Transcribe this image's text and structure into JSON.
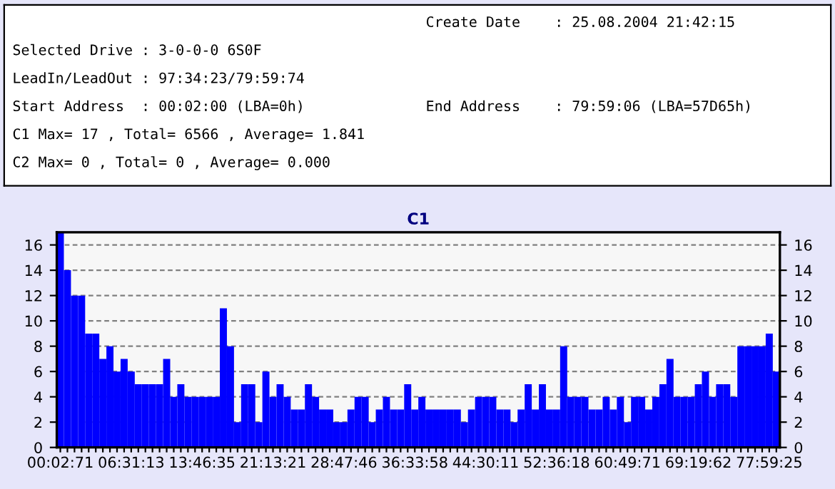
{
  "chart_data": {
    "type": "bar",
    "title": "C1",
    "categories": [
      "00:02:71",
      null,
      null,
      null,
      null,
      null,
      null,
      null,
      null,
      null,
      "06:31:13",
      null,
      null,
      null,
      null,
      null,
      null,
      null,
      null,
      null,
      "13:46:35",
      null,
      null,
      null,
      null,
      null,
      null,
      null,
      null,
      null,
      "21:13:21",
      null,
      null,
      null,
      null,
      null,
      null,
      null,
      null,
      null,
      "28:47:46",
      null,
      null,
      null,
      null,
      null,
      null,
      null,
      null,
      null,
      "36:33:58",
      null,
      null,
      null,
      null,
      null,
      null,
      null,
      null,
      null,
      "44:30:11",
      null,
      null,
      null,
      null,
      null,
      null,
      null,
      null,
      null,
      "52:36:18",
      null,
      null,
      null,
      null,
      null,
      null,
      null,
      null,
      null,
      "60:49:71",
      null,
      null,
      null,
      null,
      null,
      null,
      null,
      null,
      null,
      "69:19:62",
      null,
      null,
      null,
      null,
      null,
      null,
      null,
      null,
      null,
      "77:59:25",
      null
    ],
    "values": [
      17,
      14,
      12,
      12,
      9,
      9,
      7,
      8,
      6,
      7,
      6,
      5,
      5,
      5,
      5,
      7,
      4,
      5,
      4,
      4,
      4,
      4,
      4,
      11,
      8,
      2,
      5,
      5,
      2,
      6,
      4,
      5,
      4,
      3,
      3,
      5,
      4,
      3,
      3,
      2,
      2,
      3,
      4,
      4,
      2,
      3,
      4,
      3,
      3,
      5,
      3,
      4,
      3,
      3,
      3,
      3,
      3,
      2,
      3,
      4,
      4,
      4,
      3,
      3,
      2,
      3,
      5,
      3,
      5,
      3,
      3,
      8,
      4,
      4,
      4,
      3,
      3,
      4,
      3,
      4,
      2,
      4,
      4,
      3,
      4,
      5,
      7,
      4,
      4,
      4,
      5,
      6,
      4,
      5,
      5,
      4,
      8,
      8,
      8,
      8,
      9,
      6
    ],
    "color": "#0000ff",
    "ylim": [
      0,
      17
    ],
    "yticks": [
      0,
      2,
      4,
      6,
      8,
      10,
      12,
      14,
      16
    ],
    "y2lim": [
      0,
      17
    ],
    "y2ticks": [
      0,
      2,
      4,
      6,
      8,
      10,
      12,
      14,
      16
    ],
    "grid": "y",
    "annotations": [
      "Create Date    : 25.08.2004 21:42:15",
      "Selected Drive : 3-0-0-0 6S0F",
      "LeadIn/LeadOut : 97:34:23/79:59:74",
      "Start Address  : 00:02:00 (LBA=0h)",
      "End Address    : 79:59:06 (LBA=57D65h)",
      "C1 Max= 17 , Total= 6566 , Average= 1.841",
      "C2 Max= 0 , Total= 0 , Average= 0.000"
    ]
  }
}
